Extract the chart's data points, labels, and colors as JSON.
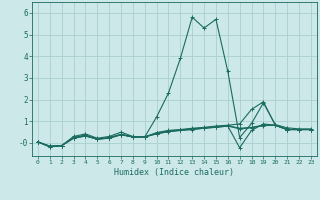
{
  "background_color": "#cce8e8",
  "grid_color": "#aacfcf",
  "line_color": "#1a6b60",
  "xlabel": "Humidex (Indice chaleur)",
  "xlim": [
    -0.5,
    23.5
  ],
  "ylim": [
    -0.6,
    6.5
  ],
  "xtick_labels": [
    "0",
    "1",
    "2",
    "3",
    "4",
    "5",
    "6",
    "7",
    "8",
    "9",
    "1011",
    "1213",
    "1415",
    "1617",
    "1819",
    "2021",
    "2223"
  ],
  "ytick_labels": [
    "-0",
    "1",
    "2",
    "3",
    "4",
    "5",
    "6"
  ],
  "series": [
    [
      0.05,
      -0.15,
      -0.12,
      0.3,
      0.42,
      0.22,
      0.3,
      0.5,
      0.3,
      0.28,
      1.2,
      2.3,
      3.9,
      5.8,
      5.3,
      5.7,
      3.3,
      0.25,
      0.9,
      1.85,
      0.85,
      0.7,
      0.65,
      0.65
    ],
    [
      0.05,
      -0.18,
      -0.12,
      0.22,
      0.32,
      0.18,
      0.22,
      0.38,
      0.28,
      0.28,
      0.48,
      0.58,
      0.62,
      0.68,
      0.72,
      0.78,
      0.82,
      0.88,
      1.55,
      1.9,
      0.82,
      0.62,
      0.62,
      0.62
    ],
    [
      0.05,
      -0.18,
      -0.12,
      0.22,
      0.32,
      0.18,
      0.22,
      0.38,
      0.28,
      0.28,
      0.42,
      0.52,
      0.58,
      0.62,
      0.68,
      0.72,
      0.78,
      -0.22,
      0.58,
      0.88,
      0.82,
      0.62,
      0.62,
      0.62
    ],
    [
      0.05,
      -0.15,
      -0.12,
      0.25,
      0.36,
      0.18,
      0.25,
      0.4,
      0.28,
      0.28,
      0.45,
      0.55,
      0.6,
      0.65,
      0.7,
      0.75,
      0.8,
      0.68,
      0.72,
      0.82,
      0.82,
      0.62,
      0.62,
      0.62
    ],
    [
      0.05,
      -0.15,
      -0.12,
      0.24,
      0.35,
      0.18,
      0.24,
      0.39,
      0.28,
      0.28,
      0.43,
      0.53,
      0.58,
      0.63,
      0.68,
      0.73,
      0.78,
      0.65,
      0.7,
      0.8,
      0.82,
      0.62,
      0.62,
      0.62
    ]
  ]
}
